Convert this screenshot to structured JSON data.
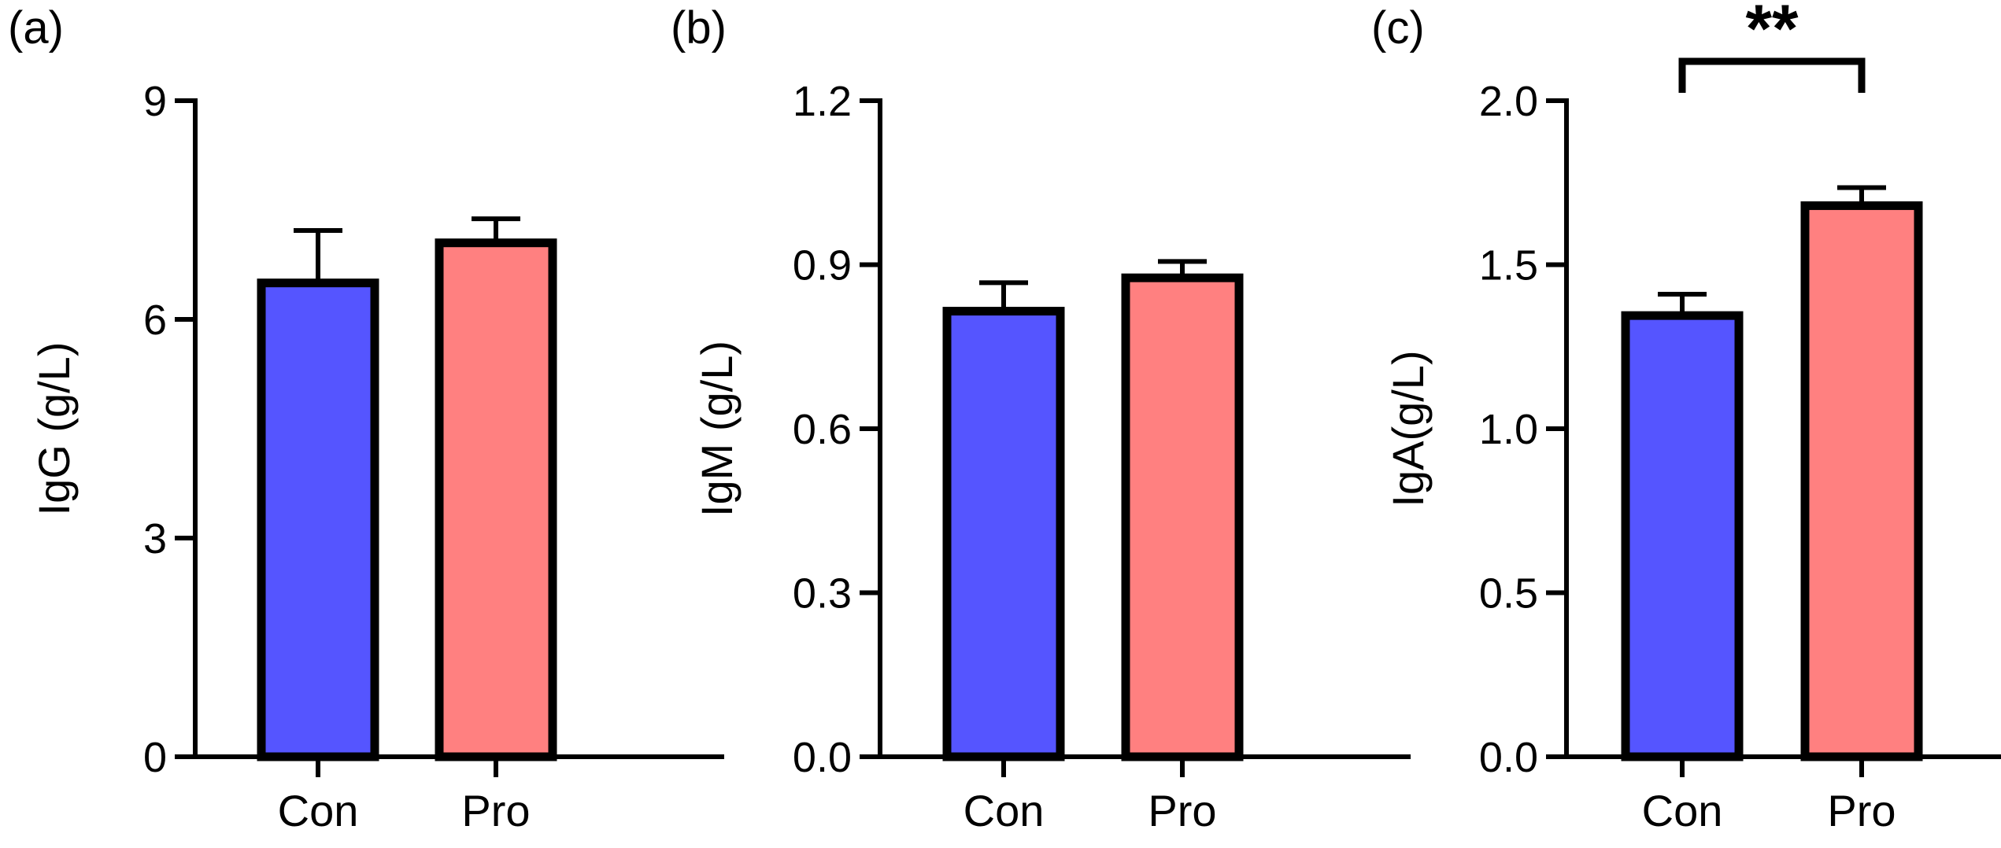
{
  "chart_data": [
    {
      "type": "bar",
      "panel_label": "(a)",
      "title": "",
      "xlabel": "",
      "ylabel": "IgG (g/L)",
      "categories": [
        "Con",
        "Pro"
      ],
      "values": [
        6.5,
        7.05
      ],
      "errors": [
        0.72,
        0.33
      ],
      "colors": [
        "#5555ff",
        "#ff8080"
      ],
      "ylim": [
        0,
        9
      ],
      "yticks": [
        0,
        3,
        6,
        9
      ],
      "ytick_labels": [
        "0",
        "3",
        "6",
        "9"
      ],
      "grid": false,
      "significance": null
    },
    {
      "type": "bar",
      "panel_label": "(b)",
      "title": "",
      "xlabel": "",
      "ylabel": "IgM (g/L)",
      "categories": [
        "Con",
        "Pro"
      ],
      "values": [
        0.815,
        0.876
      ],
      "errors": [
        0.052,
        0.03
      ],
      "colors": [
        "#5555ff",
        "#ff8080"
      ],
      "ylim": [
        0,
        1.2
      ],
      "yticks": [
        0,
        0.3,
        0.6,
        0.9,
        1.2
      ],
      "ytick_labels": [
        "0.0",
        "0.3",
        "0.6",
        "0.9",
        "1.2"
      ],
      "grid": false,
      "significance": null
    },
    {
      "type": "bar",
      "panel_label": "(c)",
      "title": "",
      "xlabel": "",
      "ylabel": "IgA(g/L)",
      "categories": [
        "Con",
        "Pro"
      ],
      "values": [
        1.345,
        1.68
      ],
      "errors": [
        0.065,
        0.055
      ],
      "colors": [
        "#5555ff",
        "#ff8080"
      ],
      "ylim": [
        0,
        2.0
      ],
      "yticks": [
        0,
        0.5,
        1.0,
        1.5,
        2.0
      ],
      "ytick_labels": [
        "0.0",
        "0.5",
        "1.0",
        "1.5",
        "2.0"
      ],
      "grid": false,
      "significance": {
        "between": [
          0,
          1
        ],
        "label": "**"
      }
    }
  ]
}
